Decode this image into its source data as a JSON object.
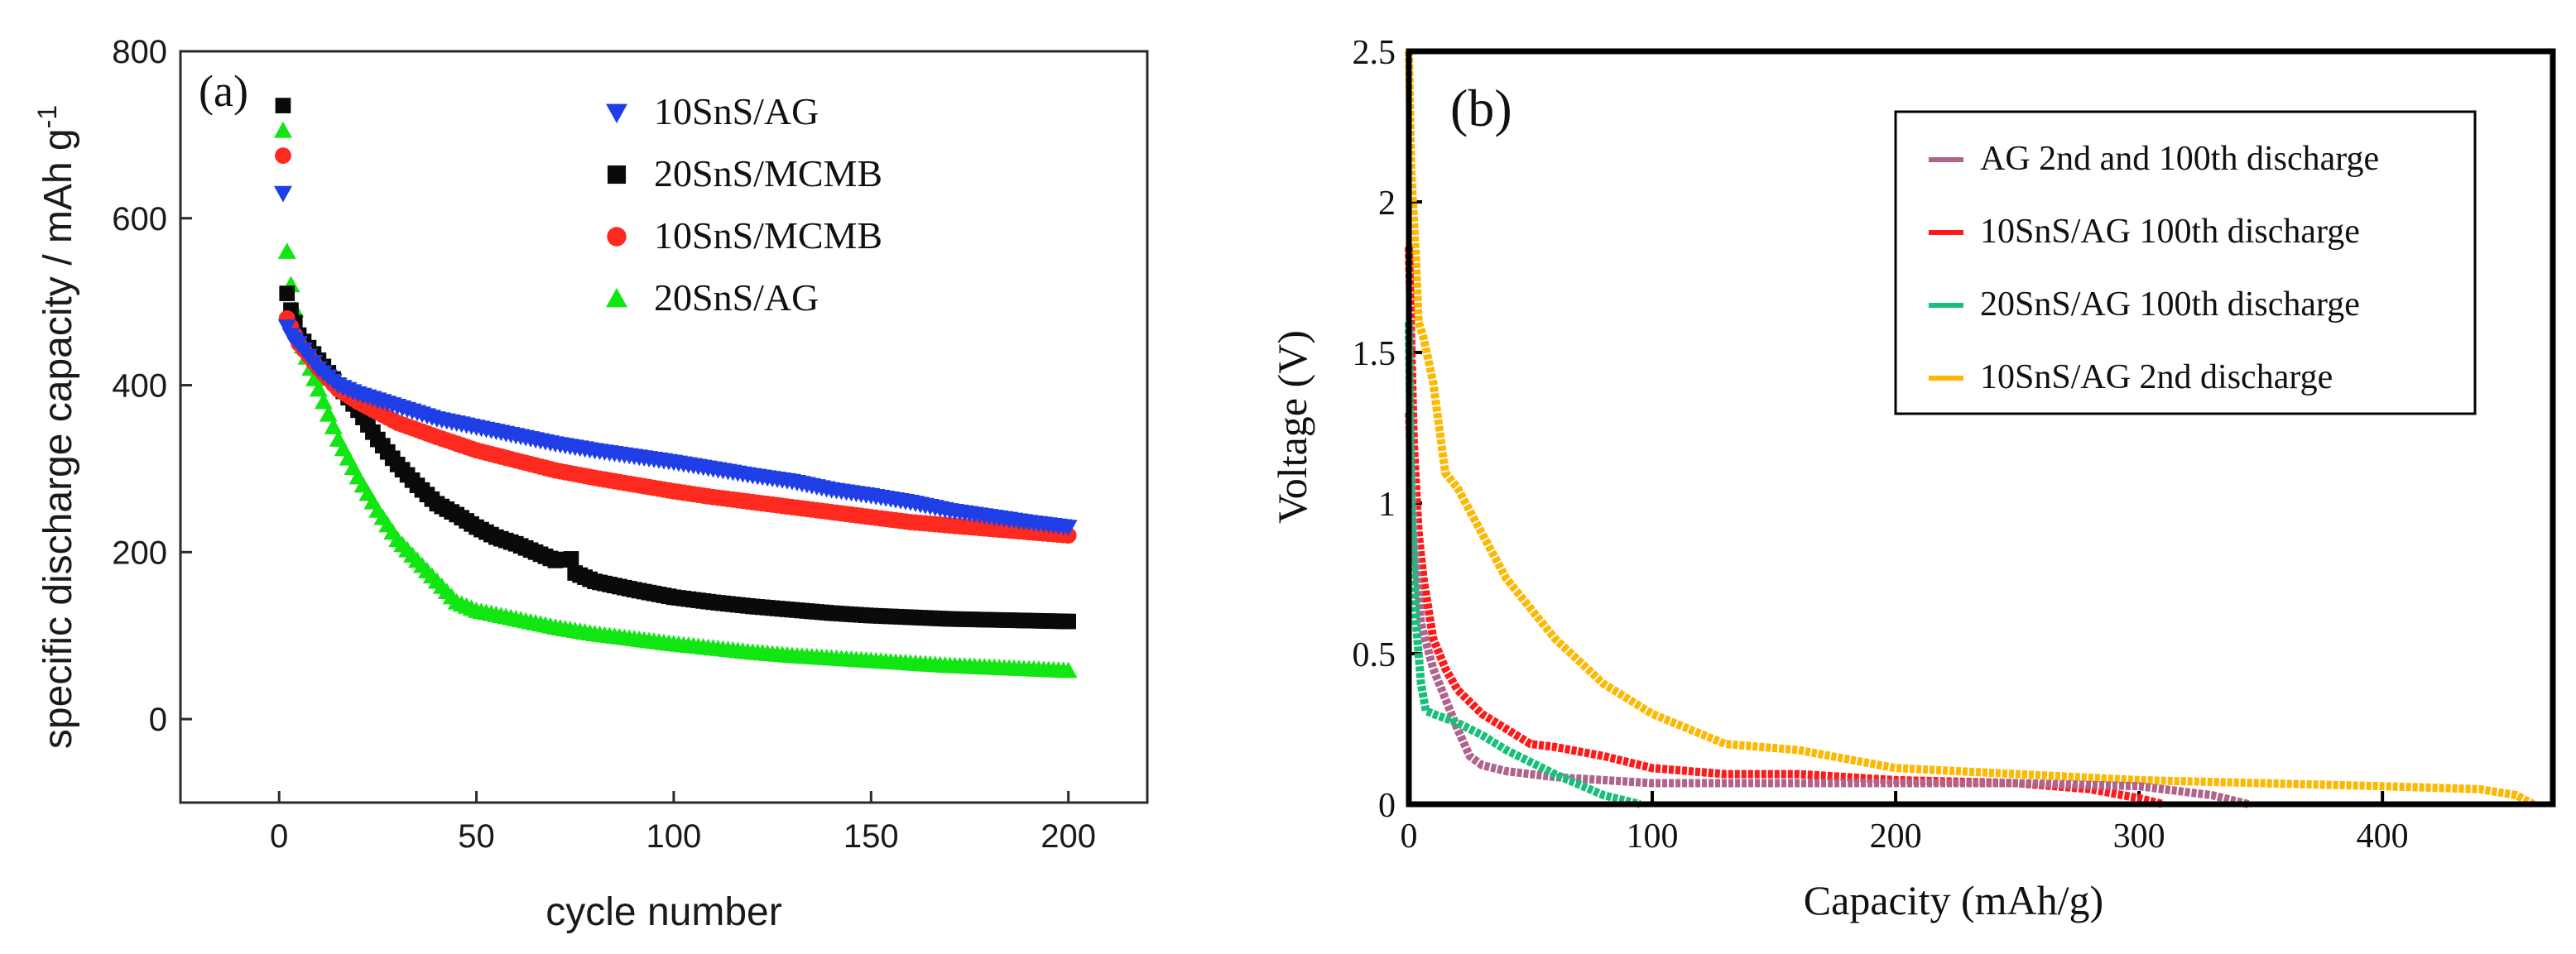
{
  "chart_data": [
    {
      "type": "scatter",
      "panel_label": "(a)",
      "xlabel": "cycle number",
      "ylabel": "specific discharge capacity / mAh g",
      "ylabel_sup": "-1",
      "xlim": [
        -25,
        220
      ],
      "ylim": [
        -100,
        800
      ],
      "xticks": [
        0,
        50,
        100,
        150,
        200
      ],
      "yticks": [
        0,
        200,
        400,
        600,
        800
      ],
      "legend_position": "top-right",
      "series": [
        {
          "name": "10SnS/AG",
          "color": "#1f3ee6",
          "marker": "triangle-down",
          "x": [
            1,
            2,
            3,
            5,
            10,
            15,
            20,
            30,
            40,
            50,
            60,
            70,
            80,
            90,
            100,
            110,
            120,
            130,
            140,
            150,
            160,
            170,
            180,
            190,
            200
          ],
          "y": [
            630,
            470,
            460,
            450,
            420,
            400,
            390,
            375,
            360,
            350,
            340,
            330,
            322,
            315,
            308,
            300,
            292,
            285,
            275,
            268,
            260,
            250,
            243,
            236,
            230
          ]
        },
        {
          "name": "20SnS/MCMB",
          "color": "#0a0a0a",
          "marker": "square",
          "x": [
            1,
            2,
            3,
            5,
            10,
            15,
            20,
            25,
            30,
            35,
            40,
            45,
            50,
            55,
            60,
            65,
            70,
            74,
            75,
            80,
            90,
            100,
            110,
            120,
            130,
            140,
            150,
            160,
            170,
            180,
            190,
            200
          ],
          "y": [
            735,
            510,
            490,
            460,
            430,
            400,
            370,
            335,
            305,
            280,
            258,
            245,
            230,
            218,
            210,
            200,
            190,
            192,
            175,
            165,
            155,
            146,
            140,
            135,
            131,
            127,
            124,
            122,
            120,
            119,
            118,
            117
          ]
        },
        {
          "name": "10SnS/MCMB",
          "color": "#ff2a1f",
          "marker": "circle",
          "x": [
            1,
            2,
            3,
            5,
            10,
            15,
            20,
            30,
            40,
            50,
            60,
            70,
            80,
            90,
            100,
            110,
            120,
            130,
            140,
            150,
            160,
            170,
            180,
            190,
            200
          ],
          "y": [
            675,
            480,
            470,
            450,
            420,
            395,
            380,
            355,
            338,
            322,
            310,
            298,
            289,
            281,
            273,
            266,
            260,
            254,
            248,
            242,
            236,
            232,
            228,
            224,
            220
          ]
        },
        {
          "name": "20SnS/AG",
          "color": "#12e612",
          "marker": "triangle-up",
          "x": [
            1,
            2,
            3,
            4,
            5,
            8,
            10,
            15,
            20,
            25,
            30,
            35,
            40,
            45,
            50,
            60,
            70,
            80,
            90,
            100,
            110,
            120,
            130,
            140,
            150,
            160,
            170,
            180,
            190,
            200
          ],
          "y": [
            705,
            560,
            520,
            490,
            460,
            420,
            395,
            335,
            290,
            250,
            215,
            190,
            165,
            140,
            130,
            120,
            110,
            102,
            96,
            90,
            85,
            80,
            76,
            73,
            70,
            67,
            64,
            62,
            60,
            58
          ]
        }
      ]
    },
    {
      "type": "line",
      "panel_label": "(b)",
      "xlabel": "Capacity (mAh/g)",
      "ylabel": "Voltage (V)",
      "xlim": [
        0,
        470
      ],
      "ylim": [
        0,
        2.5
      ],
      "xticks": [
        0,
        100,
        200,
        300,
        400
      ],
      "ytick_labels": [
        "0",
        "0.5",
        "1",
        "1.5",
        "2",
        "2.5"
      ],
      "ytick_values": [
        0,
        0.5,
        1,
        1.5,
        2,
        2.5
      ],
      "legend_position": "top-right",
      "series": [
        {
          "name": "AG 2nd and 100th discharge",
          "color": "#b0648c",
          "x": [
            0,
            2,
            5,
            10,
            15,
            20,
            25,
            30,
            40,
            60,
            100,
            150,
            200,
            250,
            300,
            330,
            345
          ],
          "y": [
            1.3,
            0.9,
            0.6,
            0.45,
            0.35,
            0.25,
            0.16,
            0.13,
            0.11,
            0.09,
            0.07,
            0.07,
            0.07,
            0.07,
            0.06,
            0.03,
            0.0
          ]
        },
        {
          "name": "10SnS/AG 100th discharge",
          "color": "#ff1a1a",
          "x": [
            0,
            2,
            4,
            6,
            8,
            10,
            15,
            20,
            30,
            40,
            50,
            60,
            80,
            100,
            130,
            160,
            200,
            250,
            280,
            300,
            310
          ],
          "y": [
            1.85,
            1.2,
            0.9,
            0.75,
            0.65,
            0.55,
            0.45,
            0.38,
            0.3,
            0.25,
            0.2,
            0.19,
            0.16,
            0.12,
            0.1,
            0.1,
            0.08,
            0.07,
            0.05,
            0.02,
            0.0
          ]
        },
        {
          "name": "20SnS/AG 100th discharge",
          "color": "#17c07a",
          "x": [
            0,
            1,
            3,
            5,
            7,
            10,
            20,
            30,
            40,
            60,
            80,
            95
          ],
          "y": [
            1.6,
            1.0,
            0.6,
            0.4,
            0.31,
            0.3,
            0.27,
            0.23,
            0.18,
            0.1,
            0.03,
            0.0
          ]
        },
        {
          "name": "10SnS/AG 2nd discharge",
          "color": "#ffb800",
          "x": [
            0,
            1,
            2,
            3,
            4,
            6,
            10,
            15,
            20,
            30,
            40,
            60,
            80,
            100,
            130,
            160,
            200,
            250,
            300,
            350,
            400,
            440,
            455,
            462
          ],
          "y": [
            2.5,
            2.1,
            1.95,
            1.8,
            1.6,
            1.55,
            1.4,
            1.1,
            1.05,
            0.9,
            0.75,
            0.55,
            0.4,
            0.3,
            0.2,
            0.18,
            0.12,
            0.1,
            0.08,
            0.07,
            0.06,
            0.05,
            0.03,
            0.0
          ]
        }
      ]
    }
  ]
}
